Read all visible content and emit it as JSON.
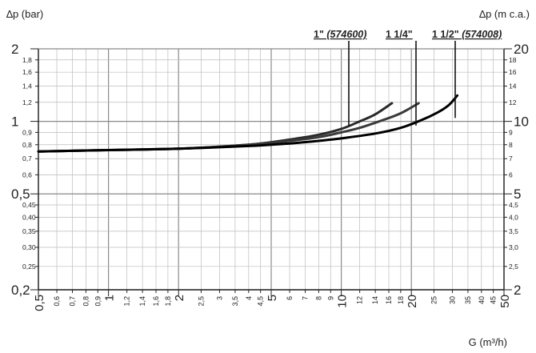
{
  "chart_data": {
    "type": "line",
    "xlabel": "G (m³/h)",
    "ylabel_left": "∆p (bar)",
    "ylabel_right": "∆p (m c.a.)",
    "x_scale": "log",
    "y_scale": "log",
    "xlim": [
      0.5,
      50
    ],
    "ylim": [
      0.2,
      2
    ],
    "grid": true,
    "x_ticks": [
      {
        "v": 0.5,
        "label": "0,5",
        "major": true
      },
      {
        "v": 0.6,
        "label": "0,6"
      },
      {
        "v": 0.7,
        "label": "0,7"
      },
      {
        "v": 0.8,
        "label": "0,8"
      },
      {
        "v": 0.9,
        "label": "0,9"
      },
      {
        "v": 1,
        "label": "1",
        "major": true
      },
      {
        "v": 1.2,
        "label": "1,2"
      },
      {
        "v": 1.4,
        "label": "1,4"
      },
      {
        "v": 1.6,
        "label": "1,6"
      },
      {
        "v": 1.8,
        "label": "1,8"
      },
      {
        "v": 2,
        "label": "2",
        "major": true
      },
      {
        "v": 2.5,
        "label": "2,5"
      },
      {
        "v": 3,
        "label": "3"
      },
      {
        "v": 3.5,
        "label": "3,5"
      },
      {
        "v": 4,
        "label": "4"
      },
      {
        "v": 4.5,
        "label": "4,5"
      },
      {
        "v": 5,
        "label": "5",
        "major": true
      },
      {
        "v": 6,
        "label": "6"
      },
      {
        "v": 7,
        "label": "7"
      },
      {
        "v": 8,
        "label": "8"
      },
      {
        "v": 9,
        "label": "9"
      },
      {
        "v": 10,
        "label": "10",
        "major": true
      },
      {
        "v": 12,
        "label": "12"
      },
      {
        "v": 14,
        "label": "14"
      },
      {
        "v": 16,
        "label": "16"
      },
      {
        "v": 18,
        "label": "18"
      },
      {
        "v": 20,
        "label": "20",
        "major": true
      },
      {
        "v": 25,
        "label": "25"
      },
      {
        "v": 30,
        "label": "30"
      },
      {
        "v": 35,
        "label": "35"
      },
      {
        "v": 40,
        "label": "40"
      },
      {
        "v": 45,
        "label": "45"
      },
      {
        "v": 50,
        "label": "50",
        "major": true
      }
    ],
    "y_ticks_left": [
      {
        "v": 0.2,
        "label": "0,2",
        "major": true
      },
      {
        "v": 0.25,
        "label": "0,25"
      },
      {
        "v": 0.3,
        "label": "0,30"
      },
      {
        "v": 0.35,
        "label": "0,35"
      },
      {
        "v": 0.4,
        "label": "0,40"
      },
      {
        "v": 0.45,
        "label": "0,45"
      },
      {
        "v": 0.5,
        "label": "0,5",
        "major": true
      },
      {
        "v": 0.6,
        "label": "0,6"
      },
      {
        "v": 0.7,
        "label": "0,7"
      },
      {
        "v": 0.8,
        "label": "0,8"
      },
      {
        "v": 0.9,
        "label": "0,9"
      },
      {
        "v": 1,
        "label": "1",
        "major": true
      },
      {
        "v": 1.2,
        "label": "1,2"
      },
      {
        "v": 1.4,
        "label": "1,4"
      },
      {
        "v": 1.6,
        "label": "1,6"
      },
      {
        "v": 1.8,
        "label": "1,8"
      },
      {
        "v": 2,
        "label": "2",
        "major": true
      }
    ],
    "y_ticks_right": [
      {
        "v": 0.2,
        "label": "2",
        "major": true
      },
      {
        "v": 0.25,
        "label": "2,5"
      },
      {
        "v": 0.3,
        "label": "3,0"
      },
      {
        "v": 0.35,
        "label": "3,5"
      },
      {
        "v": 0.4,
        "label": "4,0"
      },
      {
        "v": 0.45,
        "label": "4,5"
      },
      {
        "v": 0.5,
        "label": "5",
        "major": true
      },
      {
        "v": 0.6,
        "label": "6"
      },
      {
        "v": 0.7,
        "label": "7"
      },
      {
        "v": 0.8,
        "label": "8"
      },
      {
        "v": 0.9,
        "label": "9"
      },
      {
        "v": 1,
        "label": "10",
        "major": true
      },
      {
        "v": 1.2,
        "label": "12"
      },
      {
        "v": 1.4,
        "label": "14"
      },
      {
        "v": 1.6,
        "label": "16"
      },
      {
        "v": 1.8,
        "label": "18"
      },
      {
        "v": 2,
        "label": "20",
        "major": true
      }
    ],
    "series": [
      {
        "name": "1\" (574600)",
        "label_main": "1\"",
        "label_code": "(574600)",
        "color": "#2a2a2a",
        "x": [
          0.5,
          1,
          2,
          4,
          6,
          8,
          10,
          12,
          14,
          16.5
        ],
        "y": [
          0.75,
          0.76,
          0.77,
          0.8,
          0.84,
          0.88,
          0.93,
          1.0,
          1.07,
          1.19
        ]
      },
      {
        "name": "1 1/4\"",
        "label_main": "1 1/4\"",
        "label_code": "",
        "color": "#3a3a3a",
        "x": [
          0.5,
          1,
          2,
          4,
          6,
          8,
          10,
          12,
          15,
          18,
          21.5
        ],
        "y": [
          0.75,
          0.76,
          0.77,
          0.8,
          0.83,
          0.86,
          0.9,
          0.94,
          1.01,
          1.08,
          1.19
        ]
      },
      {
        "name": "1 1/2\" (574008)",
        "label_main": "1 1/2\"",
        "label_code": "(574008)",
        "color": "#000000",
        "x": [
          0.5,
          1,
          2,
          4,
          6,
          8,
          10,
          14,
          18,
          22,
          26,
          29,
          31.5
        ],
        "y": [
          0.75,
          0.76,
          0.77,
          0.79,
          0.81,
          0.83,
          0.85,
          0.89,
          0.94,
          1.01,
          1.09,
          1.17,
          1.28
        ]
      }
    ]
  }
}
